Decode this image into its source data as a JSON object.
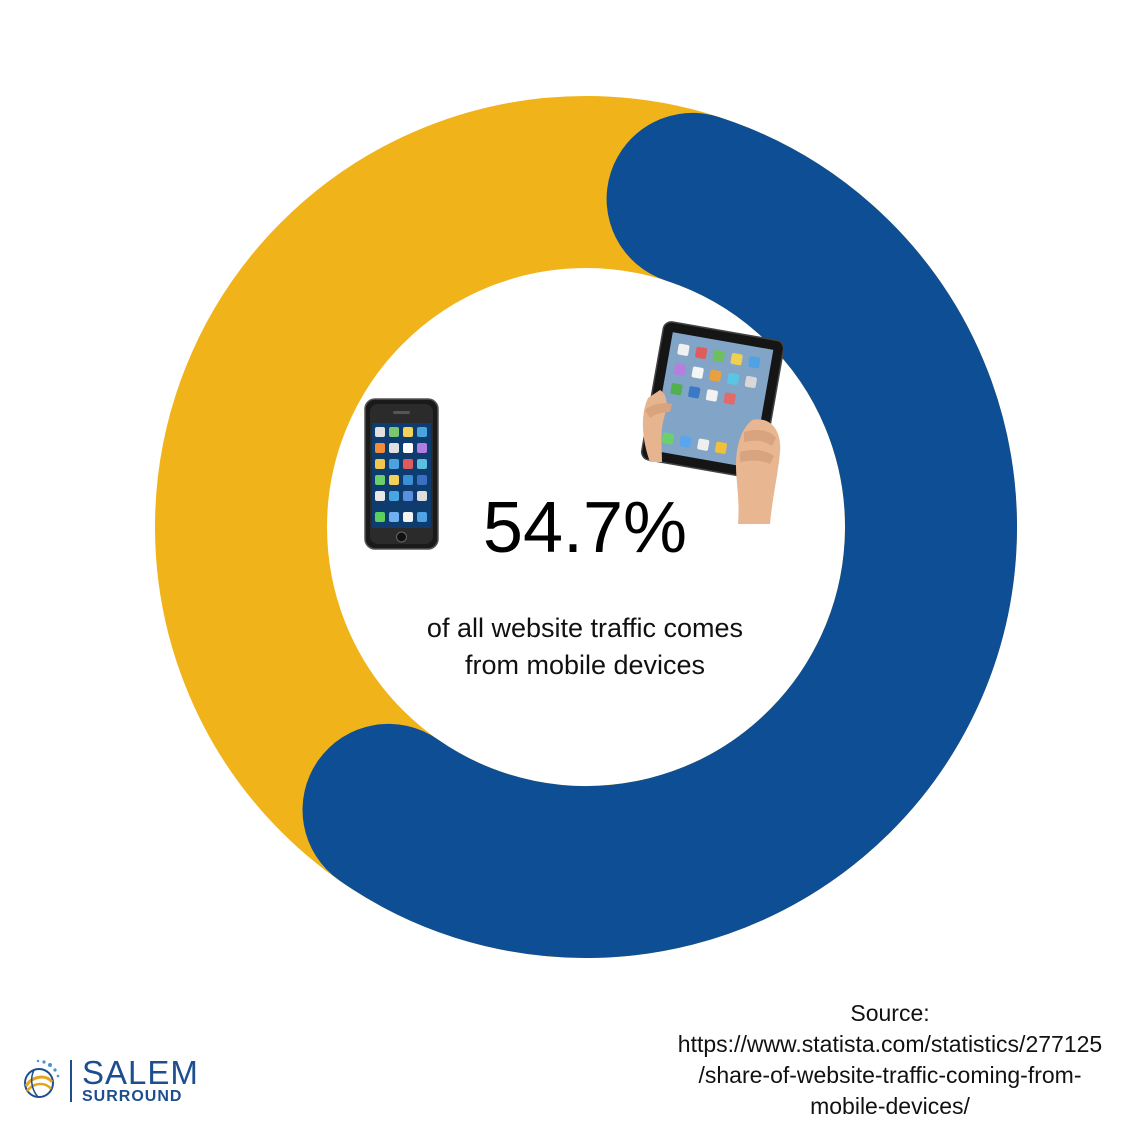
{
  "chart_data": {
    "type": "pie",
    "variant": "donut",
    "center_value": "54.7%",
    "caption_lines": [
      "of all website traffic comes",
      "from mobile devices"
    ],
    "series": [
      {
        "value": 54.7,
        "color": "#0d4e94"
      },
      {
        "value": 45.3,
        "color": "#f0b31a"
      }
    ]
  },
  "icons": {
    "phone": "smartphone-icon",
    "tablet": "tablet-in-hands-icon"
  },
  "source": {
    "label": "Source:",
    "url_lines": [
      "https://www.statista.com/statistics/277125",
      "/share-of-website-traffic-coming-from-",
      "mobile-devices/"
    ]
  },
  "logo": {
    "line1": "SALEM",
    "line2": "SURROUND",
    "color": "#1d4f8f"
  }
}
